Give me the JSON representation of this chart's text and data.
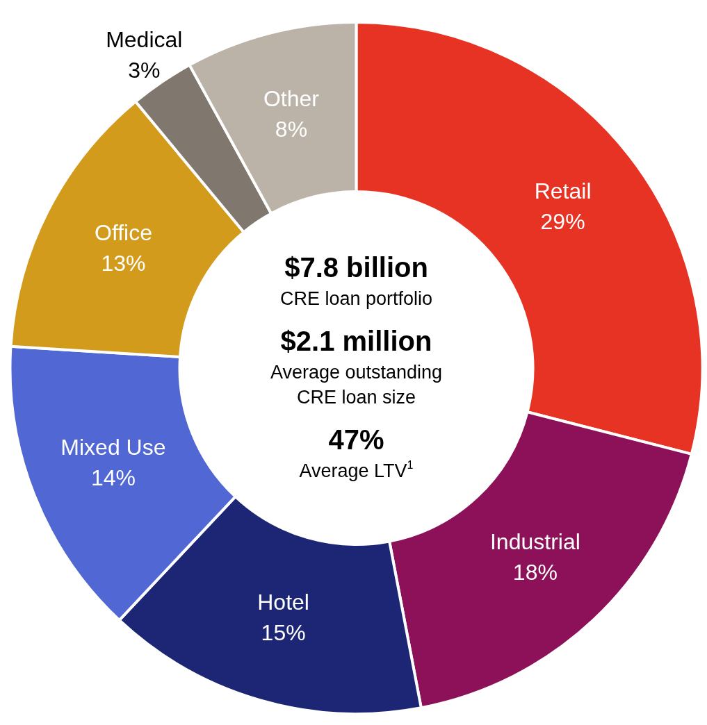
{
  "chart_data": {
    "type": "donut",
    "categories": [
      "Retail",
      "Industrial",
      "Hotel",
      "Mixed Use",
      "Office",
      "Medical",
      "Other"
    ],
    "values": [
      29,
      18,
      15,
      14,
      13,
      3,
      8
    ],
    "value_labels": [
      "29%",
      "18%",
      "15%",
      "14%",
      "13%",
      "3%",
      "8%"
    ],
    "colors": [
      "#e63323",
      "#8c1158",
      "#1c2675",
      "#5067d4",
      "#d39b1b",
      "#80776e",
      "#bbb3a8"
    ],
    "legend": false,
    "annotations": [
      "$7.8 billion",
      "CRE loan portfolio",
      "$2.1 million",
      "Average outstanding\nCRE loan size",
      "47%",
      "Average LTV$^{1}$"
    ]
  }
}
